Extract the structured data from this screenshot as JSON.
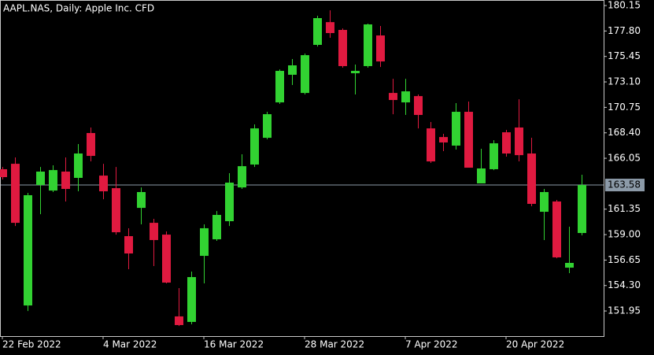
{
  "chart_data": {
    "type": "candlestick",
    "title": "AAPL.NAS, Daily:  Apple Inc. CFD",
    "categories": [
      "22 Feb 2022",
      null,
      null,
      null,
      null,
      null,
      null,
      null,
      "4 Mar 2022",
      null,
      null,
      null,
      null,
      null,
      null,
      null,
      "16 Mar 2022",
      null,
      null,
      null,
      null,
      null,
      null,
      null,
      "28 Mar 2022",
      null,
      null,
      null,
      null,
      null,
      null,
      null,
      "7 Apr 2022",
      null,
      null,
      null,
      null,
      null,
      null,
      null,
      "20 Apr 2022",
      null,
      null,
      null,
      null,
      null,
      null
    ],
    "open": [
      165.04,
      165.54,
      152.46,
      163.58,
      163.07,
      164.82,
      164.24,
      168.38,
      164.45,
      163.29,
      158.86,
      161.47,
      160.09,
      159.0,
      151.45,
      150.94,
      157.04,
      158.57,
      160.24,
      163.36,
      165.47,
      167.94,
      171.21,
      173.76,
      172.08,
      176.52,
      178.62,
      177.9,
      173.9,
      174.56,
      177.39,
      172.08,
      171.21,
      171.79,
      168.81,
      168.01,
      167.22,
      170.34,
      163.73,
      165.04,
      168.45,
      168.89,
      166.49,
      161.11,
      162.06,
      155.95,
      159.15
    ],
    "high": [
      165.25,
      166.13,
      162.86,
      165.25,
      165.4,
      166.13,
      167.36,
      168.89,
      165.54,
      165.25,
      159.59,
      163.36,
      160.46,
      159.3,
      154.06,
      155.59,
      159.95,
      161.18,
      164.67,
      166.42,
      169.18,
      170.34,
      174.25,
      175.21,
      175.72,
      179.21,
      179.71,
      178.04,
      174.7,
      178.48,
      178.26,
      173.39,
      173.39,
      171.94,
      169.4,
      168.31,
      171.14,
      171.29,
      166.93,
      167.72,
      168.67,
      171.5,
      167.94,
      163.22,
      162.2,
      159.73,
      164.53
    ],
    "low": [
      164.09,
      159.8,
      151.95,
      160.89,
      162.93,
      162.06,
      163.0,
      165.76,
      162.27,
      159.0,
      155.81,
      159.95,
      156.1,
      154.5,
      150.57,
      150.72,
      154.5,
      158.42,
      159.8,
      163.22,
      165.25,
      167.8,
      171.07,
      172.81,
      171.94,
      176.37,
      177.17,
      174.41,
      171.94,
      174.41,
      174.48,
      170.12,
      170.05,
      168.81,
      165.62,
      166.71,
      166.85,
      165.18,
      163.73,
      164.96,
      166.2,
      165.76,
      161.62,
      158.5,
      156.82,
      155.44,
      158.93
    ],
    "close": [
      164.31,
      160.09,
      162.64,
      164.82,
      164.96,
      163.22,
      166.49,
      166.27,
      163.0,
      159.22,
      157.26,
      162.93,
      158.5,
      154.57,
      150.65,
      155.08,
      159.59,
      160.82,
      163.8,
      165.32,
      168.81,
      170.12,
      174.12,
      174.63,
      175.57,
      178.99,
      177.61,
      174.56,
      174.12,
      178.41,
      174.99,
      171.43,
      172.23,
      170.05,
      165.76,
      167.51,
      170.34,
      165.18,
      165.11,
      167.43,
      166.49,
      166.34,
      161.84,
      162.93,
      156.9,
      156.39,
      163.58
    ],
    "up_color": "#32d232",
    "down_color": "#e01a40",
    "last_price": 163.58,
    "ylim": [
      149.63,
      180.59
    ],
    "yticks": [
      151.95,
      {
        "value": 154.3,
        "label": "154.30"
      },
      156.65,
      {
        "value": 159,
        "label": "159.00"
      },
      161.35,
      166.05,
      {
        "value": 168.4,
        "label": "168.40"
      },
      170.75,
      {
        "value": 173.1,
        "label": "173.10"
      },
      175.45,
      {
        "value": 177.8,
        "label": "177.80"
      },
      180.15
    ]
  }
}
